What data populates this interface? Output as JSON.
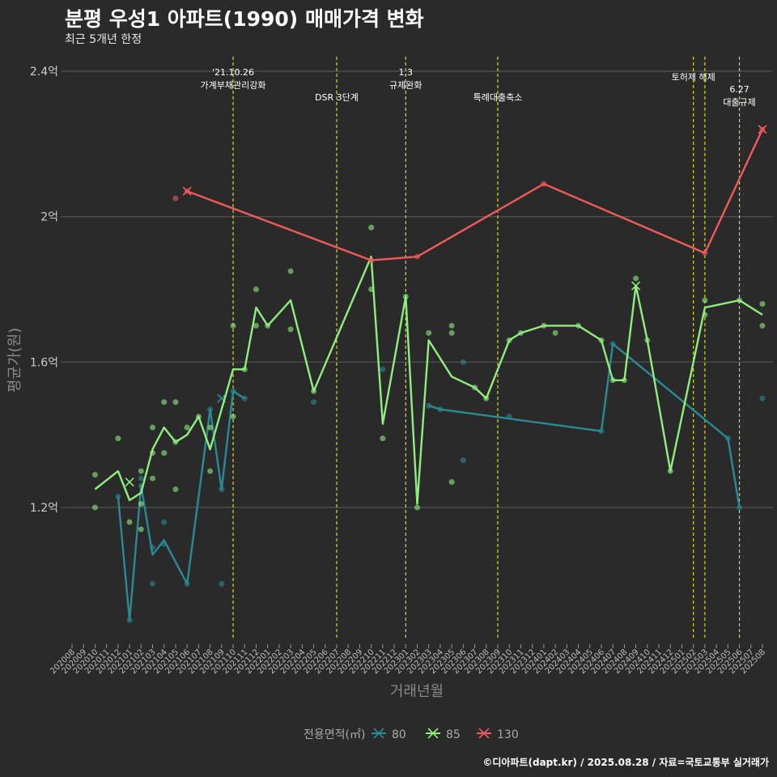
{
  "header": {
    "title": "분평 우성1 아파트(1990) 매매가격 변화",
    "subtitle": "최근 5개년 한정",
    "credit": "©디아파트(dapt.kr) / 2025.08.28 / 자료=국토교통부 실거래가"
  },
  "chart_data": {
    "type": "line",
    "xlabel": "거래년월",
    "ylabel": "평균가(원)",
    "ylim": [
      0.85,
      2.45
    ],
    "yticks": [
      {
        "value": 1.2,
        "label": "1.2억"
      },
      {
        "value": 1.6,
        "label": "1.6억"
      },
      {
        "value": 2.0,
        "label": "2억"
      },
      {
        "value": 2.4,
        "label": "2.4억"
      }
    ],
    "categories": [
      "202008",
      "202009",
      "202010",
      "202011",
      "202012",
      "202101",
      "202102",
      "202103",
      "202104",
      "202105",
      "202106",
      "202107",
      "202108",
      "202109",
      "202110",
      "202111",
      "202112",
      "202201",
      "202202",
      "202203",
      "202204",
      "202205",
      "202206",
      "202207",
      "202208",
      "202209",
      "202210",
      "202211",
      "202212",
      "202301",
      "202302",
      "202303",
      "202304",
      "202305",
      "202306",
      "202307",
      "202308",
      "202309",
      "202310",
      "202311",
      "202312",
      "202401",
      "202402",
      "202403",
      "202404",
      "202405",
      "202406",
      "202407",
      "202408",
      "202409",
      "202410",
      "202411",
      "202412",
      "202501",
      "202502",
      "202503",
      "202504",
      "202505",
      "202506",
      "202507",
      "202508"
    ],
    "grid": true,
    "legend_title": "전용면적(㎡)",
    "legend_position": "bottom",
    "events": [
      {
        "x": "202110",
        "label": "'21.10.26\n가계부채관리강화",
        "row": 0
      },
      {
        "x": "202207",
        "label": "DSR 3단계",
        "row": 1
      },
      {
        "x": "202301",
        "label": "1.3\n규제완화",
        "row": 0
      },
      {
        "x": "202309",
        "label": "특례대출축소",
        "row": 1
      },
      {
        "x": "202502",
        "label": "토허제 해제",
        "row": 0
      },
      {
        "x": "202503",
        "label": "",
        "row": 0
      },
      {
        "x": "202506",
        "label": "6.27\n대출규제",
        "row": 2
      }
    ],
    "series": [
      {
        "name": "80",
        "color": "#2a8a94",
        "line": [
          [
            "202012",
            1.23
          ],
          [
            "202101",
            0.89
          ],
          [
            "202102",
            1.26
          ],
          [
            "202103",
            1.07
          ],
          [
            "202104",
            1.11
          ],
          [
            "202106",
            0.99
          ],
          [
            "202108",
            1.47
          ],
          [
            "202109",
            1.25
          ],
          [
            "202110",
            1.52
          ],
          [
            "202111",
            1.5
          ],
          [
            "202202",
            null
          ],
          [
            "202303",
            1.48
          ],
          [
            "202304",
            1.47
          ],
          [
            "202406",
            1.41
          ],
          [
            "202407",
            1.65
          ],
          [
            "202505",
            1.39
          ],
          [
            "202506",
            1.2
          ]
        ],
        "points": [
          [
            "202012",
            1.23
          ],
          [
            "202101",
            0.89
          ],
          [
            "202102",
            1.28
          ],
          [
            "202102",
            1.26
          ],
          [
            "202103",
            1.09
          ],
          [
            "202103",
            0.99
          ],
          [
            "202104",
            1.16
          ],
          [
            "202104",
            1.1
          ],
          [
            "202106",
            0.99
          ],
          [
            "202108",
            1.47
          ],
          [
            "202109",
            0.99
          ],
          [
            "202109",
            1.25
          ],
          [
            "202110",
            1.52
          ],
          [
            "202111",
            1.5
          ],
          [
            "202205",
            1.49
          ],
          [
            "202211",
            1.58
          ],
          [
            "202303",
            1.48
          ],
          [
            "202304",
            1.47
          ],
          [
            "202306",
            1.6
          ],
          [
            "202306",
            1.33
          ],
          [
            "202310",
            1.45
          ],
          [
            "202406",
            1.41
          ],
          [
            "202407",
            1.65
          ],
          [
            "202505",
            1.39
          ],
          [
            "202506",
            1.2
          ],
          [
            "202508",
            1.5
          ]
        ],
        "markers": [
          [
            "202109",
            1.5
          ]
        ]
      },
      {
        "name": "85",
        "color": "#90ee7e",
        "line": [
          [
            "202010",
            1.25
          ],
          [
            "202012",
            1.3
          ],
          [
            "202101",
            1.22
          ],
          [
            "202102",
            1.24
          ],
          [
            "202103",
            1.36
          ],
          [
            "202104",
            1.42
          ],
          [
            "202105",
            1.38
          ],
          [
            "202106",
            1.4
          ],
          [
            "202107",
            1.45
          ],
          [
            "202108",
            1.36
          ],
          [
            "202110",
            1.58
          ],
          [
            "202111",
            1.58
          ],
          [
            "202112",
            1.75
          ],
          [
            "202201",
            1.7
          ],
          [
            "202203",
            1.77
          ],
          [
            "202205",
            1.52
          ],
          [
            "202210",
            1.89
          ],
          [
            "202211",
            1.43
          ],
          [
            "202301",
            1.78
          ],
          [
            "202302",
            1.21
          ],
          [
            "202303",
            1.66
          ],
          [
            "202305",
            1.56
          ],
          [
            "202307",
            1.53
          ],
          [
            "202308",
            1.5
          ],
          [
            "202310",
            1.66
          ],
          [
            "202311",
            1.68
          ],
          [
            "202401",
            1.7
          ],
          [
            "202402",
            1.7
          ],
          [
            "202404",
            1.7
          ],
          [
            "202406",
            1.66
          ],
          [
            "202407",
            1.55
          ],
          [
            "202408",
            1.55
          ],
          [
            "202409",
            1.81
          ],
          [
            "202410",
            1.66
          ],
          [
            "202412",
            1.3
          ],
          [
            "202503",
            1.75
          ],
          [
            "202506",
            1.77
          ],
          [
            "202508",
            1.73
          ]
        ],
        "points": [
          [
            "202010",
            1.29
          ],
          [
            "202010",
            1.2
          ],
          [
            "202012",
            1.39
          ],
          [
            "202101",
            1.16
          ],
          [
            "202102",
            1.3
          ],
          [
            "202102",
            1.21
          ],
          [
            "202102",
            1.14
          ],
          [
            "202103",
            1.42
          ],
          [
            "202103",
            1.35
          ],
          [
            "202103",
            1.28
          ],
          [
            "202104",
            1.49
          ],
          [
            "202104",
            1.35
          ],
          [
            "202105",
            1.49
          ],
          [
            "202105",
            1.38
          ],
          [
            "202105",
            1.25
          ],
          [
            "202106",
            1.42
          ],
          [
            "202107",
            1.45
          ],
          [
            "202108",
            1.42
          ],
          [
            "202108",
            1.3
          ],
          [
            "202110",
            1.7
          ],
          [
            "202110",
            1.45
          ],
          [
            "202111",
            1.58
          ],
          [
            "202112",
            1.8
          ],
          [
            "202112",
            1.7
          ],
          [
            "202201",
            1.7
          ],
          [
            "202203",
            1.85
          ],
          [
            "202203",
            1.69
          ],
          [
            "202205",
            1.52
          ],
          [
            "202210",
            1.97
          ],
          [
            "202210",
            1.8
          ],
          [
            "202211",
            1.39
          ],
          [
            "202301",
            1.78
          ],
          [
            "202302",
            1.2
          ],
          [
            "202303",
            1.68
          ],
          [
            "202305",
            1.7
          ],
          [
            "202305",
            1.68
          ],
          [
            "202305",
            1.27
          ],
          [
            "202307",
            1.53
          ],
          [
            "202308",
            1.5
          ],
          [
            "202310",
            1.66
          ],
          [
            "202311",
            1.68
          ],
          [
            "202401",
            1.7
          ],
          [
            "202402",
            1.68
          ],
          [
            "202404",
            1.7
          ],
          [
            "202406",
            1.66
          ],
          [
            "202407",
            1.55
          ],
          [
            "202408",
            1.55
          ],
          [
            "202409",
            1.83
          ],
          [
            "202410",
            1.66
          ],
          [
            "202412",
            1.3
          ],
          [
            "202503",
            1.77
          ],
          [
            "202503",
            1.73
          ],
          [
            "202506",
            1.77
          ],
          [
            "202508",
            1.76
          ],
          [
            "202508",
            1.7
          ]
        ],
        "markers": [
          [
            "202101",
            1.27
          ],
          [
            "202409",
            1.81
          ]
        ]
      },
      {
        "name": "130",
        "color": "#f05a5a",
        "line": [
          [
            "202106",
            2.07
          ],
          [
            "202210",
            1.88
          ],
          [
            "202302",
            1.89
          ],
          [
            "202401",
            2.09
          ],
          [
            "202503",
            1.9
          ],
          [
            "202508",
            2.24
          ]
        ],
        "points": [
          [
            "202105",
            2.05
          ],
          [
            "202106",
            2.07
          ],
          [
            "202210",
            1.88
          ],
          [
            "202302",
            1.89
          ],
          [
            "202401",
            2.09
          ],
          [
            "202503",
            1.9
          ],
          [
            "202508",
            2.24
          ]
        ],
        "markers": [
          [
            "202106",
            2.07
          ],
          [
            "202508",
            2.24
          ]
        ]
      }
    ]
  }
}
